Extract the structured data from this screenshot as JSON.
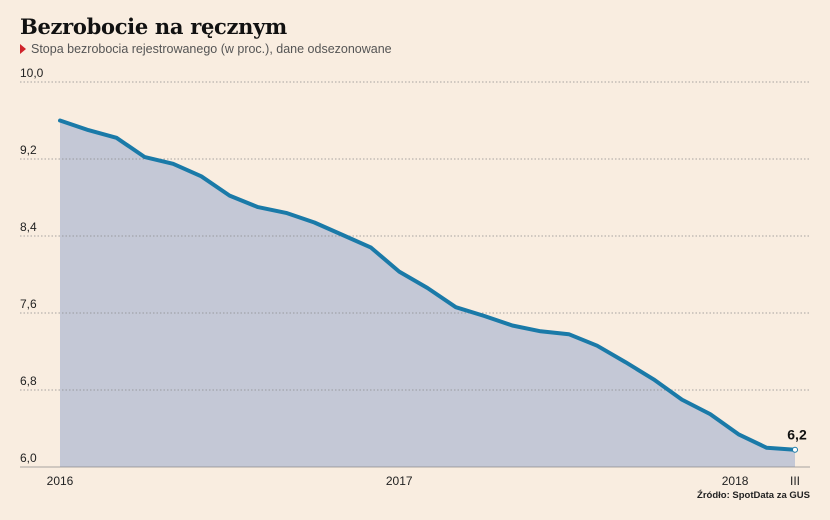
{
  "header": {
    "title": "Bezrobocie na ręcznym",
    "subtitle": "Stopa bezrobocia rejestrowanego (w proc.), dane odsezonowane"
  },
  "source": "Źródło: SpotData za GUS",
  "colors": {
    "background": "#f9ede0",
    "line": "#1a7aa8",
    "area": "#c4c8d6",
    "grid": "#8a8a8a",
    "subtitle_marker": "#d0232a"
  },
  "chart_data": {
    "type": "area",
    "title": "Bezrobocie na ręcznym",
    "ylim": [
      6.0,
      10.0
    ],
    "yticks": [
      "10,0",
      "9,2",
      "8,4",
      "7,6",
      "6,8",
      "6,0"
    ],
    "xticks": [
      "2016",
      "2017",
      "2018",
      "III"
    ],
    "grid": true,
    "series": [
      {
        "values": [
          9.6,
          9.5,
          9.42,
          9.22,
          9.15,
          9.02,
          8.82,
          8.7,
          8.64,
          8.54,
          8.41,
          8.28,
          8.03,
          7.86,
          7.66,
          7.57,
          7.47,
          7.41,
          7.38,
          7.26,
          7.09,
          6.91,
          6.7,
          6.55,
          6.34,
          6.2,
          6.18
        ]
      }
    ],
    "last_value_label": "6,2"
  }
}
